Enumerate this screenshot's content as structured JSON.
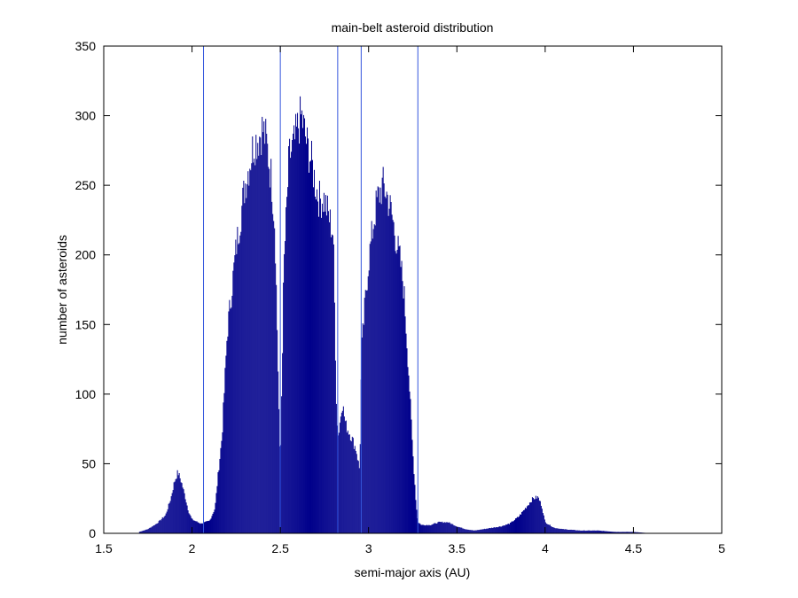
{
  "chart_data": {
    "type": "bar",
    "title": "main-belt asteroid distribution",
    "xlabel": "semi-major axis (AU)",
    "ylabel": "number of asteroids",
    "xlim": [
      1.5,
      5
    ],
    "ylim": [
      0,
      350
    ],
    "xticks": [
      1.5,
      2,
      2.5,
      3,
      3.5,
      4,
      4.5,
      5
    ],
    "xtick_labels": [
      "1.5",
      "2",
      "2.5",
      "3",
      "3.5",
      "4",
      "4.5",
      "5"
    ],
    "yticks": [
      0,
      50,
      100,
      150,
      200,
      250,
      300,
      350
    ],
    "ytick_labels": [
      "0",
      "50",
      "100",
      "150",
      "200",
      "250",
      "300",
      "350"
    ],
    "grid": false,
    "bar_color": "#00008B",
    "resonance_line_color": "#3355DD",
    "resonance_lines": [
      2.065,
      2.5,
      2.825,
      2.958,
      3.279
    ],
    "bin_width": 0.005,
    "histogram": {
      "bin_centers": [
        1.7,
        1.75,
        1.8,
        1.85,
        1.88,
        1.9,
        1.92,
        1.94,
        1.96,
        1.98,
        2.0,
        2.05,
        2.1,
        2.13,
        2.15,
        2.17,
        2.2,
        2.25,
        2.3,
        2.33,
        2.35,
        2.38,
        2.4,
        2.42,
        2.45,
        2.47,
        2.5,
        2.52,
        2.55,
        2.58,
        2.6,
        2.62,
        2.65,
        2.68,
        2.7,
        2.72,
        2.75,
        2.78,
        2.8,
        2.82,
        2.83,
        2.85,
        2.87,
        2.9,
        2.93,
        2.95,
        2.96,
        2.98,
        3.0,
        3.03,
        3.05,
        3.08,
        3.1,
        3.13,
        3.15,
        3.18,
        3.2,
        3.23,
        3.25,
        3.27,
        3.28,
        3.3,
        3.35,
        3.4,
        3.45,
        3.5,
        3.55,
        3.6,
        3.65,
        3.7,
        3.75,
        3.8,
        3.85,
        3.9,
        3.93,
        3.96,
        3.98,
        4.0,
        4.05,
        4.1,
        4.2,
        4.3,
        4.4,
        4.5,
        4.6
      ],
      "counts": [
        1,
        3,
        7,
        13,
        25,
        37,
        44,
        37,
        27,
        16,
        10,
        7,
        9,
        18,
        45,
        70,
        145,
        205,
        250,
        268,
        280,
        285,
        291,
        282,
        255,
        220,
        45,
        190,
        270,
        280,
        292,
        300,
        280,
        265,
        250,
        240,
        240,
        225,
        215,
        80,
        70,
        95,
        78,
        70,
        60,
        45,
        130,
        165,
        195,
        225,
        240,
        250,
        245,
        230,
        215,
        195,
        175,
        110,
        60,
        20,
        8,
        6,
        6,
        8,
        8,
        5,
        3,
        2,
        3,
        4,
        5,
        7,
        12,
        20,
        25,
        26,
        20,
        8,
        4,
        3,
        2,
        2,
        1,
        1,
        0
      ]
    }
  }
}
